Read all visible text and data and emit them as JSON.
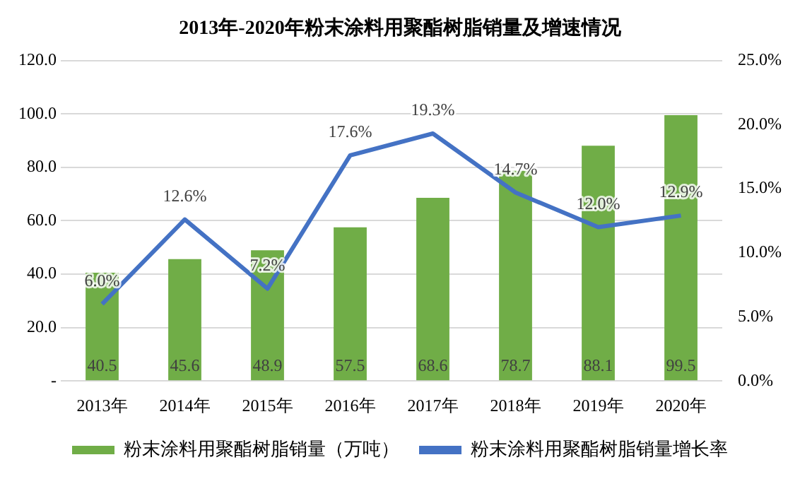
{
  "chart_data": {
    "type": "bar",
    "title": "2013年-2020年粉末涂料用聚酯树脂销量及增速情况",
    "categories": [
      "2013年",
      "2014年",
      "2015年",
      "2016年",
      "2017年",
      "2018年",
      "2019年",
      "2020年"
    ],
    "series": [
      {
        "name": "粉末涂料用聚酯树脂销量（万吨）",
        "color": "#70ad47",
        "values": [
          40.5,
          45.6,
          48.9,
          57.5,
          68.6,
          78.7,
          88.1,
          99.5
        ],
        "value_labels": [
          "40.5",
          "45.6",
          "48.9",
          "57.5",
          "68.6",
          "78.7",
          "88.1",
          "99.5"
        ]
      },
      {
        "name": "粉末涂料用聚酯树脂销量增长率",
        "type": "line",
        "axis": "y2",
        "color": "#4472c4",
        "values": [
          6.0,
          12.6,
          7.2,
          17.6,
          19.3,
          14.7,
          12.0,
          12.9
        ],
        "value_labels": [
          "6.0%",
          "12.6%",
          "7.2%",
          "17.6%",
          "19.3%",
          "14.7%",
          "12.0%",
          "12.9%"
        ]
      }
    ],
    "ylim": [
      0,
      120
    ],
    "yticks": [
      {
        "value": 0,
        "label": "-"
      },
      {
        "value": 20,
        "label": "20.0"
      },
      {
        "value": 40,
        "label": "40.0"
      },
      {
        "value": 60,
        "label": "60.0"
      },
      {
        "value": 80,
        "label": "80.0"
      },
      {
        "value": 100,
        "label": "100.0"
      },
      {
        "value": 120,
        "label": "120.0"
      }
    ],
    "y2lim": [
      0,
      25
    ],
    "y2ticks": [
      {
        "value": 0,
        "label": "0.0%"
      },
      {
        "value": 5,
        "label": "5.0%"
      },
      {
        "value": 10,
        "label": "10.0%"
      },
      {
        "value": 15,
        "label": "15.0%"
      },
      {
        "value": 20,
        "label": "20.0%"
      },
      {
        "value": 25,
        "label": "25.0%"
      }
    ],
    "grid": "y",
    "legend": "bottom",
    "marker": "none",
    "line_style": "solid"
  }
}
